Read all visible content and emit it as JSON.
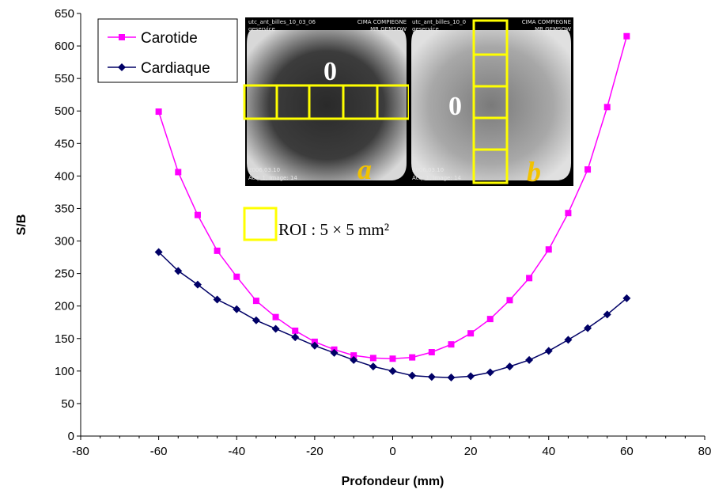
{
  "chart_data": {
    "type": "line",
    "xlabel": "Profondeur (mm)",
    "ylabel": "S/B",
    "xlim": [
      -80,
      80
    ],
    "ylim": [
      0,
      650
    ],
    "x_ticks": [
      "-80",
      "-60",
      "-40",
      "-20",
      "0",
      "20",
      "40",
      "60",
      "80"
    ],
    "y_ticks": [
      "0",
      "50",
      "100",
      "150",
      "200",
      "250",
      "300",
      "350",
      "400",
      "450",
      "500",
      "550",
      "600",
      "650"
    ],
    "x": [
      -60,
      -55,
      -50,
      -45,
      -40,
      -35,
      -30,
      -25,
      -20,
      -15,
      -10,
      -5,
      0,
      5,
      10,
      15,
      20,
      25,
      30,
      35,
      40,
      45,
      50,
      55,
      60
    ],
    "series": [
      {
        "name": "Carotide",
        "color": "#ff00ff",
        "marker": "square",
        "values": [
          499,
          406,
          340,
          285,
          245,
          208,
          183,
          162,
          145,
          133,
          124,
          120,
          119,
          121,
          129,
          141,
          158,
          180,
          209,
          243,
          287,
          343,
          410,
          506,
          615
        ]
      },
      {
        "name": "Cardiaque",
        "color": "#000066",
        "marker": "diamond",
        "values": [
          283,
          254,
          233,
          210,
          195,
          178,
          165,
          152,
          139,
          128,
          117,
          107,
          100,
          93,
          91,
          90,
          92,
          98,
          107,
          117,
          131,
          148,
          166,
          187,
          212
        ]
      }
    ],
    "legend_position": "top-left",
    "grid": false
  },
  "inset": {
    "image_a": {
      "header_left": "utc_ant_billes_10_03_06",
      "header_left_2": "geservice",
      "header_right": "CIMA COMPIEGNE",
      "header_right_2": "MR GEMSOW",
      "footer_1": "2006.03.10",
      "footer_2": "Acq: 1, Image: 14",
      "zero_label": "0",
      "panel_label": "a"
    },
    "image_b": {
      "header_left": "utc_ant_billes_10_0",
      "header_left_2": "geservice",
      "header_right": "CIMA COMPIEGNE",
      "header_right_2": "MR GEMSOW",
      "footer_1": "2006.03.10",
      "footer_2": "Acq: 1, Image: 14",
      "zero_label": "0",
      "panel_label": "b"
    },
    "roi_label": "ROI : 5 × 5 mm²",
    "roi_color": "#ffff00"
  }
}
